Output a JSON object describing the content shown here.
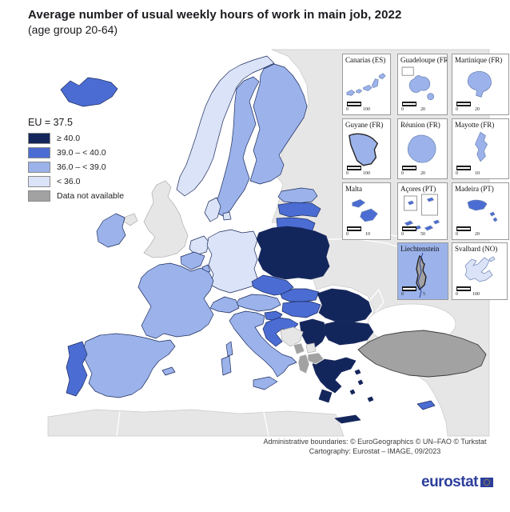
{
  "title": {
    "line1": "Average number of usual weekly hours of work in main job, 2022",
    "line2": "(age group 20-64)"
  },
  "legend": {
    "eu_label": "EU = 37.5",
    "classes": [
      {
        "id": "c1",
        "label": "≥ 40.0",
        "color": "#13265c"
      },
      {
        "id": "c2",
        "label": "39.0 – < 40.0",
        "color": "#4b6dd3"
      },
      {
        "id": "c3",
        "label": "36.0 – < 39.0",
        "color": "#9bb3ea"
      },
      {
        "id": "c4",
        "label": "< 36.0",
        "color": "#dae3f7"
      },
      {
        "id": "nodata",
        "label": "Data not available",
        "color": "#a2a2a2"
      }
    ],
    "other_land_color": "#e6e6e6"
  },
  "map": {
    "countries": [
      {
        "id": "IS",
        "name": "Iceland",
        "class": "c2"
      },
      {
        "id": "NO",
        "name": "Norway",
        "class": "c4"
      },
      {
        "id": "SE",
        "name": "Sweden",
        "class": "c3"
      },
      {
        "id": "FI",
        "name": "Finland",
        "class": "c3"
      },
      {
        "id": "EE",
        "name": "Estonia",
        "class": "c3"
      },
      {
        "id": "LV",
        "name": "Latvia",
        "class": "c2"
      },
      {
        "id": "LT",
        "name": "Lithuania",
        "class": "c2"
      },
      {
        "id": "DK",
        "name": "Denmark",
        "class": "c4"
      },
      {
        "id": "IE",
        "name": "Ireland",
        "class": "c3"
      },
      {
        "id": "NL",
        "name": "Netherlands",
        "class": "c4"
      },
      {
        "id": "BE",
        "name": "Belgium",
        "class": "c3"
      },
      {
        "id": "LU",
        "name": "Luxembourg",
        "class": "c3"
      },
      {
        "id": "DE",
        "name": "Germany",
        "class": "c4"
      },
      {
        "id": "PL",
        "name": "Poland",
        "class": "c1"
      },
      {
        "id": "CZ",
        "name": "Czechia",
        "class": "c2"
      },
      {
        "id": "SK",
        "name": "Slovakia",
        "class": "c2"
      },
      {
        "id": "AT",
        "name": "Austria",
        "class": "c3"
      },
      {
        "id": "CH",
        "name": "Switzerland",
        "class": "c3"
      },
      {
        "id": "HU",
        "name": "Hungary",
        "class": "c2"
      },
      {
        "id": "SI",
        "name": "Slovenia",
        "class": "c2"
      },
      {
        "id": "HR",
        "name": "Croatia",
        "class": "c2"
      },
      {
        "id": "RS",
        "name": "Serbia",
        "class": "c1"
      },
      {
        "id": "ME",
        "name": "Montenegro",
        "class": "nodata"
      },
      {
        "id": "MK",
        "name": "North Macedonia",
        "class": "nodata"
      },
      {
        "id": "AL",
        "name": "Albania",
        "class": "nodata"
      },
      {
        "id": "RO",
        "name": "Romania",
        "class": "c1"
      },
      {
        "id": "BG",
        "name": "Bulgaria",
        "class": "c1"
      },
      {
        "id": "EL",
        "name": "Greece",
        "class": "c1"
      },
      {
        "id": "TR",
        "name": "Türkiye",
        "class": "nodata"
      },
      {
        "id": "CY",
        "name": "Cyprus",
        "class": "c2"
      },
      {
        "id": "FR",
        "name": "France",
        "class": "c3"
      },
      {
        "id": "ES",
        "name": "Spain",
        "class": "c3"
      },
      {
        "id": "PT",
        "name": "Portugal",
        "class": "c2"
      },
      {
        "id": "IT",
        "name": "Italy",
        "class": "c3"
      },
      {
        "id": "UK",
        "name": "United Kingdom",
        "class": "other"
      },
      {
        "id": "BA",
        "name": "Bosnia and Herzegovina",
        "class": "other"
      },
      {
        "id": "XK",
        "name": "Kosovo",
        "class": "other"
      },
      {
        "id": "RUK",
        "name": "Kaliningrad",
        "class": "other"
      }
    ]
  },
  "insets": [
    {
      "title": "Canarias (ES)",
      "class": "c3",
      "bg": "white",
      "scale_min": "0",
      "scale_max": "100"
    },
    {
      "title": "Guadeloupe (FR)",
      "class": "c3",
      "bg": "white",
      "scale_min": "0",
      "scale_max": "20"
    },
    {
      "title": "Martinique (FR)",
      "class": "c3",
      "bg": "white",
      "scale_min": "0",
      "scale_max": "20"
    },
    {
      "title": "Guyane (FR)",
      "class": "c3",
      "bg": "white",
      "scale_min": "0",
      "scale_max": "100"
    },
    {
      "title": "Réunion (FR)",
      "class": "c3",
      "bg": "white",
      "scale_min": "0",
      "scale_max": "20"
    },
    {
      "title": "Mayotte (FR)",
      "class": "c3",
      "bg": "white",
      "scale_min": "0",
      "scale_max": "10"
    },
    {
      "title": "Malta",
      "class": "c2",
      "bg": "white",
      "scale_min": "0",
      "scale_max": "10"
    },
    {
      "title": "Açores (PT)",
      "class": "c2",
      "bg": "white",
      "scale_min": "0",
      "scale_max": "50"
    },
    {
      "title": "Madeira (PT)",
      "class": "c2",
      "bg": "white",
      "scale_min": "0",
      "scale_max": "20"
    },
    {
      "title": "Liechtenstein",
      "class": "nodata",
      "bg": "c3",
      "scale_min": "0",
      "scale_max": "5"
    },
    {
      "title": "Svalbard (NO)",
      "class": "c4",
      "bg": "white",
      "scale_min": "0",
      "scale_max": "100"
    }
  ],
  "footer": {
    "line1": "Administrative boundaries: © EuroGeographics © UN–FAO © Turkstat",
    "line2": "Cartography: Eurostat – IMAGE, 09/2023"
  },
  "logo": {
    "text": "eurostat",
    "color": "#2c3e9c",
    "flag_blue": "#2c3e9c",
    "flag_star": "#ffcc00"
  }
}
